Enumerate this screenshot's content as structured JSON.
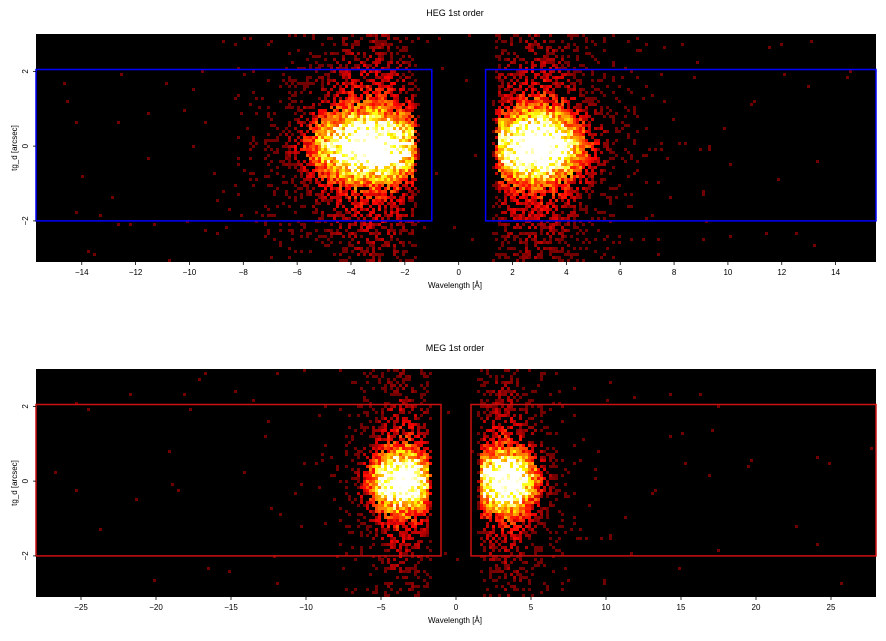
{
  "chart_data": [
    {
      "type": "heatmap",
      "title": "HEG 1st order",
      "xlabel": "Wavelength [Å]",
      "ylabel": "tg_d [arcsec]",
      "xlim": [
        -15.7,
        15.5
      ],
      "ylim": [
        -3.1,
        3.0
      ],
      "xticks": [
        -14,
        -12,
        -10,
        -8,
        -6,
        -4,
        -2,
        0,
        2,
        4,
        6,
        8,
        10,
        12,
        14
      ],
      "yticks": [
        -2,
        0,
        2
      ],
      "grid": false,
      "colormap": "hot",
      "background_color": "#000000",
      "region_color": "#0000ff",
      "regions": [
        {
          "x": [
            -16.0,
            -1.0
          ],
          "y": [
            -2.0,
            2.05
          ]
        },
        {
          "x": [
            1.0,
            16.0
          ],
          "y": [
            -2.0,
            2.05
          ]
        }
      ],
      "clusters": [
        {
          "x_center": -3.3,
          "x_sigma": 1.4,
          "y_center": 0.0,
          "y_sigma": 0.7,
          "x_edge": -1.7,
          "side": "left"
        },
        {
          "x_center": 2.9,
          "x_sigma": 1.2,
          "y_center": 0.0,
          "y_sigma": 0.7,
          "x_edge": 1.5,
          "side": "right"
        }
      ]
    },
    {
      "type": "heatmap",
      "title": "MEG 1st order",
      "xlabel": "Wavelength [Å]",
      "ylabel": "tg_d [arcsec]",
      "xlim": [
        -28.0,
        28.0
      ],
      "ylim": [
        -3.1,
        3.0
      ],
      "xticks": [
        -25,
        -20,
        -15,
        -10,
        -5,
        0,
        5,
        10,
        15,
        20,
        25
      ],
      "yticks": [
        -2,
        0,
        2
      ],
      "grid": false,
      "colormap": "hot",
      "background_color": "#000000",
      "region_color": "#cc1111",
      "regions": [
        {
          "x": [
            -30.0,
            -1.0
          ],
          "y": [
            -2.0,
            2.05
          ]
        },
        {
          "x": [
            1.0,
            30.0
          ],
          "y": [
            -2.0,
            2.05
          ]
        }
      ],
      "clusters": [
        {
          "x_center": -3.6,
          "x_sigma": 1.4,
          "y_center": 0.0,
          "y_sigma": 0.6,
          "x_edge": -1.8,
          "side": "left"
        },
        {
          "x_center": 3.3,
          "x_sigma": 1.4,
          "y_center": 0.0,
          "y_sigma": 0.6,
          "x_edge": 1.7,
          "side": "right"
        }
      ]
    }
  ]
}
